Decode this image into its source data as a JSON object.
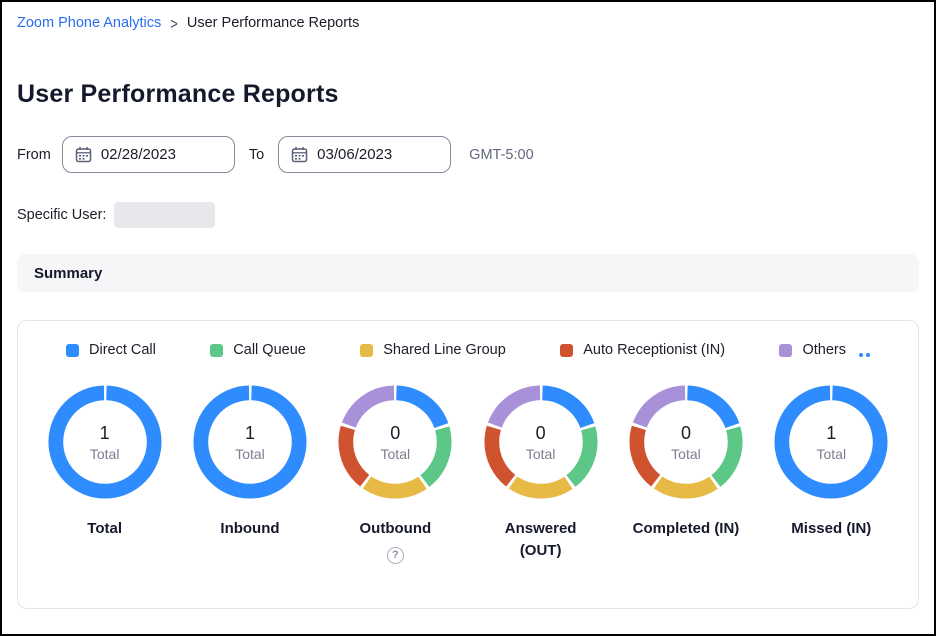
{
  "breadcrumb": {
    "link": "Zoom Phone Analytics",
    "separator": ">",
    "current": "User Performance Reports"
  },
  "page": {
    "title": "User Performance Reports"
  },
  "filters": {
    "from_label": "From",
    "from_value": "02/28/2023",
    "to_label": "To",
    "to_value": "03/06/2023",
    "timezone": "GMT-5:00",
    "specific_user_label": "Specific User:",
    "specific_user_value": ""
  },
  "summary": {
    "title": "Summary"
  },
  "colors": {
    "direct_call": "#2e8cff",
    "call_queue": "#5dc787",
    "shared_line_group": "#e6ba45",
    "auto_receptionist": "#d0532f",
    "others": "#a991d9",
    "link_blue": "#2a6ef0"
  },
  "legend": {
    "items": [
      {
        "label": "Direct Call",
        "color": "#2e8cff"
      },
      {
        "label": "Call Queue",
        "color": "#5dc787"
      },
      {
        "label": "Shared Line Group",
        "color": "#e6ba45"
      },
      {
        "label": "Auto Receptionist (IN)",
        "color": "#d0532f"
      },
      {
        "label": "Others",
        "color": "#a991d9"
      }
    ],
    "pagination_dot_count": 2
  },
  "chart_data": {
    "type": "pie",
    "title": "Summary",
    "legend_position": "top",
    "donuts": [
      {
        "label": "Total",
        "center_value": "1",
        "center_caption": "Total",
        "help": false,
        "slices": [
          {
            "name": "Direct Call",
            "value": 1,
            "color": "#2e8cff"
          }
        ]
      },
      {
        "label": "Inbound",
        "center_value": "1",
        "center_caption": "Total",
        "help": false,
        "slices": [
          {
            "name": "Direct Call",
            "value": 1,
            "color": "#2e8cff"
          }
        ]
      },
      {
        "label": "Outbound",
        "center_value": "0",
        "center_caption": "Total",
        "help": true,
        "slices": [
          {
            "name": "Direct Call",
            "value": 0,
            "color": "#2e8cff"
          },
          {
            "name": "Call Queue",
            "value": 0,
            "color": "#5dc787"
          },
          {
            "name": "Shared Line Group",
            "value": 0,
            "color": "#e6ba45"
          },
          {
            "name": "Auto Receptionist (IN)",
            "value": 0,
            "color": "#d0532f"
          },
          {
            "name": "Others",
            "value": 0,
            "color": "#a991d9"
          }
        ]
      },
      {
        "label": "Answered (OUT)",
        "center_value": "0",
        "center_caption": "Total",
        "help": false,
        "slices": [
          {
            "name": "Direct Call",
            "value": 0,
            "color": "#2e8cff"
          },
          {
            "name": "Call Queue",
            "value": 0,
            "color": "#5dc787"
          },
          {
            "name": "Shared Line Group",
            "value": 0,
            "color": "#e6ba45"
          },
          {
            "name": "Auto Receptionist (IN)",
            "value": 0,
            "color": "#d0532f"
          },
          {
            "name": "Others",
            "value": 0,
            "color": "#a991d9"
          }
        ]
      },
      {
        "label": "Completed (IN)",
        "center_value": "0",
        "center_caption": "Total",
        "help": false,
        "slices": [
          {
            "name": "Direct Call",
            "value": 0,
            "color": "#2e8cff"
          },
          {
            "name": "Call Queue",
            "value": 0,
            "color": "#5dc787"
          },
          {
            "name": "Shared Line Group",
            "value": 0,
            "color": "#e6ba45"
          },
          {
            "name": "Auto Receptionist (IN)",
            "value": 0,
            "color": "#d0532f"
          },
          {
            "name": "Others",
            "value": 0,
            "color": "#a991d9"
          }
        ]
      },
      {
        "label": "Missed (IN)",
        "center_value": "1",
        "center_caption": "Total",
        "help": false,
        "slices": [
          {
            "name": "Direct Call",
            "value": 1,
            "color": "#2e8cff"
          }
        ]
      }
    ],
    "help_glyph": "?"
  }
}
